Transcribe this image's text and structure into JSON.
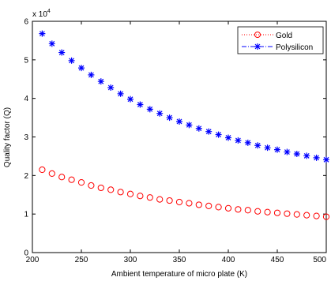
{
  "chart_data": {
    "type": "scatter",
    "title": "",
    "xlabel": "Ambient temperature of micro plate (K)",
    "ylabel": "Quality factor (Q)",
    "y_multiplier_label": "x 10",
    "y_multiplier_exponent": "4",
    "xlim": [
      200,
      500
    ],
    "ylim": [
      0,
      6
    ],
    "xticks": [
      "200",
      "250",
      "300",
      "350",
      "400",
      "450",
      "500"
    ],
    "yticks": [
      "0",
      "1",
      "2",
      "3",
      "4",
      "5",
      "6"
    ],
    "grid": false,
    "legend_position": "top-right",
    "series": [
      {
        "name": "Gold",
        "marker": "circle",
        "line_style": "dotted",
        "color": "#ff0000",
        "x": [
          210,
          220,
          230,
          240,
          250,
          260,
          270,
          280,
          290,
          300,
          310,
          320,
          330,
          340,
          350,
          360,
          370,
          380,
          390,
          400,
          410,
          420,
          430,
          440,
          450,
          460,
          470,
          480,
          490,
          500
        ],
        "y": [
          2.15,
          2.05,
          1.96,
          1.89,
          1.82,
          1.74,
          1.68,
          1.63,
          1.57,
          1.52,
          1.47,
          1.43,
          1.38,
          1.35,
          1.31,
          1.28,
          1.24,
          1.21,
          1.18,
          1.15,
          1.12,
          1.1,
          1.07,
          1.05,
          1.03,
          1.01,
          0.99,
          0.97,
          0.95,
          0.93
        ]
      },
      {
        "name": "Polysilicon",
        "marker": "star",
        "line_style": "dashdot",
        "color": "#0000ff",
        "x": [
          210,
          220,
          230,
          240,
          250,
          260,
          270,
          280,
          290,
          300,
          310,
          320,
          330,
          340,
          350,
          360,
          370,
          380,
          390,
          400,
          410,
          420,
          430,
          440,
          450,
          460,
          470,
          480,
          490,
          500
        ],
        "y": [
          5.68,
          5.42,
          5.19,
          4.98,
          4.79,
          4.61,
          4.44,
          4.28,
          4.12,
          3.98,
          3.84,
          3.72,
          3.61,
          3.5,
          3.4,
          3.31,
          3.22,
          3.14,
          3.06,
          2.98,
          2.91,
          2.85,
          2.78,
          2.72,
          2.67,
          2.61,
          2.56,
          2.51,
          2.46,
          2.41
        ]
      }
    ]
  }
}
